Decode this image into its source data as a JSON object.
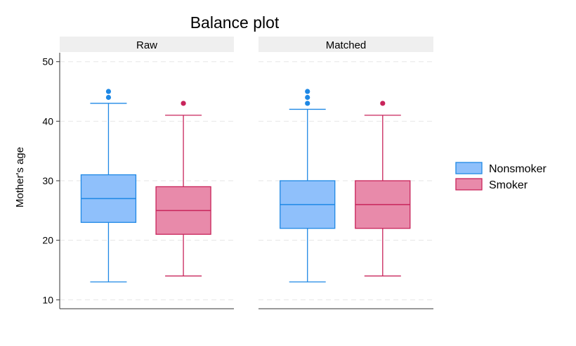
{
  "chart_data": {
    "type": "box",
    "title": "Balance plot",
    "ylabel": "Mother's age",
    "xlabel": "",
    "ylim": [
      8.5,
      51.5
    ],
    "yticks": [
      10,
      20,
      30,
      40,
      50
    ],
    "grid": true,
    "legend_position": "right",
    "panels": [
      {
        "label": "Raw",
        "boxes": [
          {
            "series": "Nonsmoker",
            "min": 13,
            "q1": 23,
            "median": 27,
            "q3": 31,
            "max": 43,
            "outliers": [
              44,
              45
            ]
          },
          {
            "series": "Smoker",
            "min": 14,
            "q1": 21,
            "median": 25,
            "q3": 29,
            "max": 41,
            "outliers": [
              43
            ]
          }
        ]
      },
      {
        "label": "Matched",
        "boxes": [
          {
            "series": "Nonsmoker",
            "min": 13,
            "q1": 22,
            "median": 26,
            "q3": 30,
            "max": 42,
            "outliers": [
              43,
              44,
              45
            ]
          },
          {
            "series": "Smoker",
            "min": 14,
            "q1": 22,
            "median": 26,
            "q3": 30,
            "max": 41,
            "outliers": [
              43
            ]
          }
        ]
      }
    ],
    "series": [
      {
        "name": "Nonsmoker",
        "fill": "#8fc0fb",
        "stroke": "#1e88e5"
      },
      {
        "name": "Smoker",
        "fill": "#e88aaa",
        "stroke": "#c8245b"
      }
    ]
  }
}
